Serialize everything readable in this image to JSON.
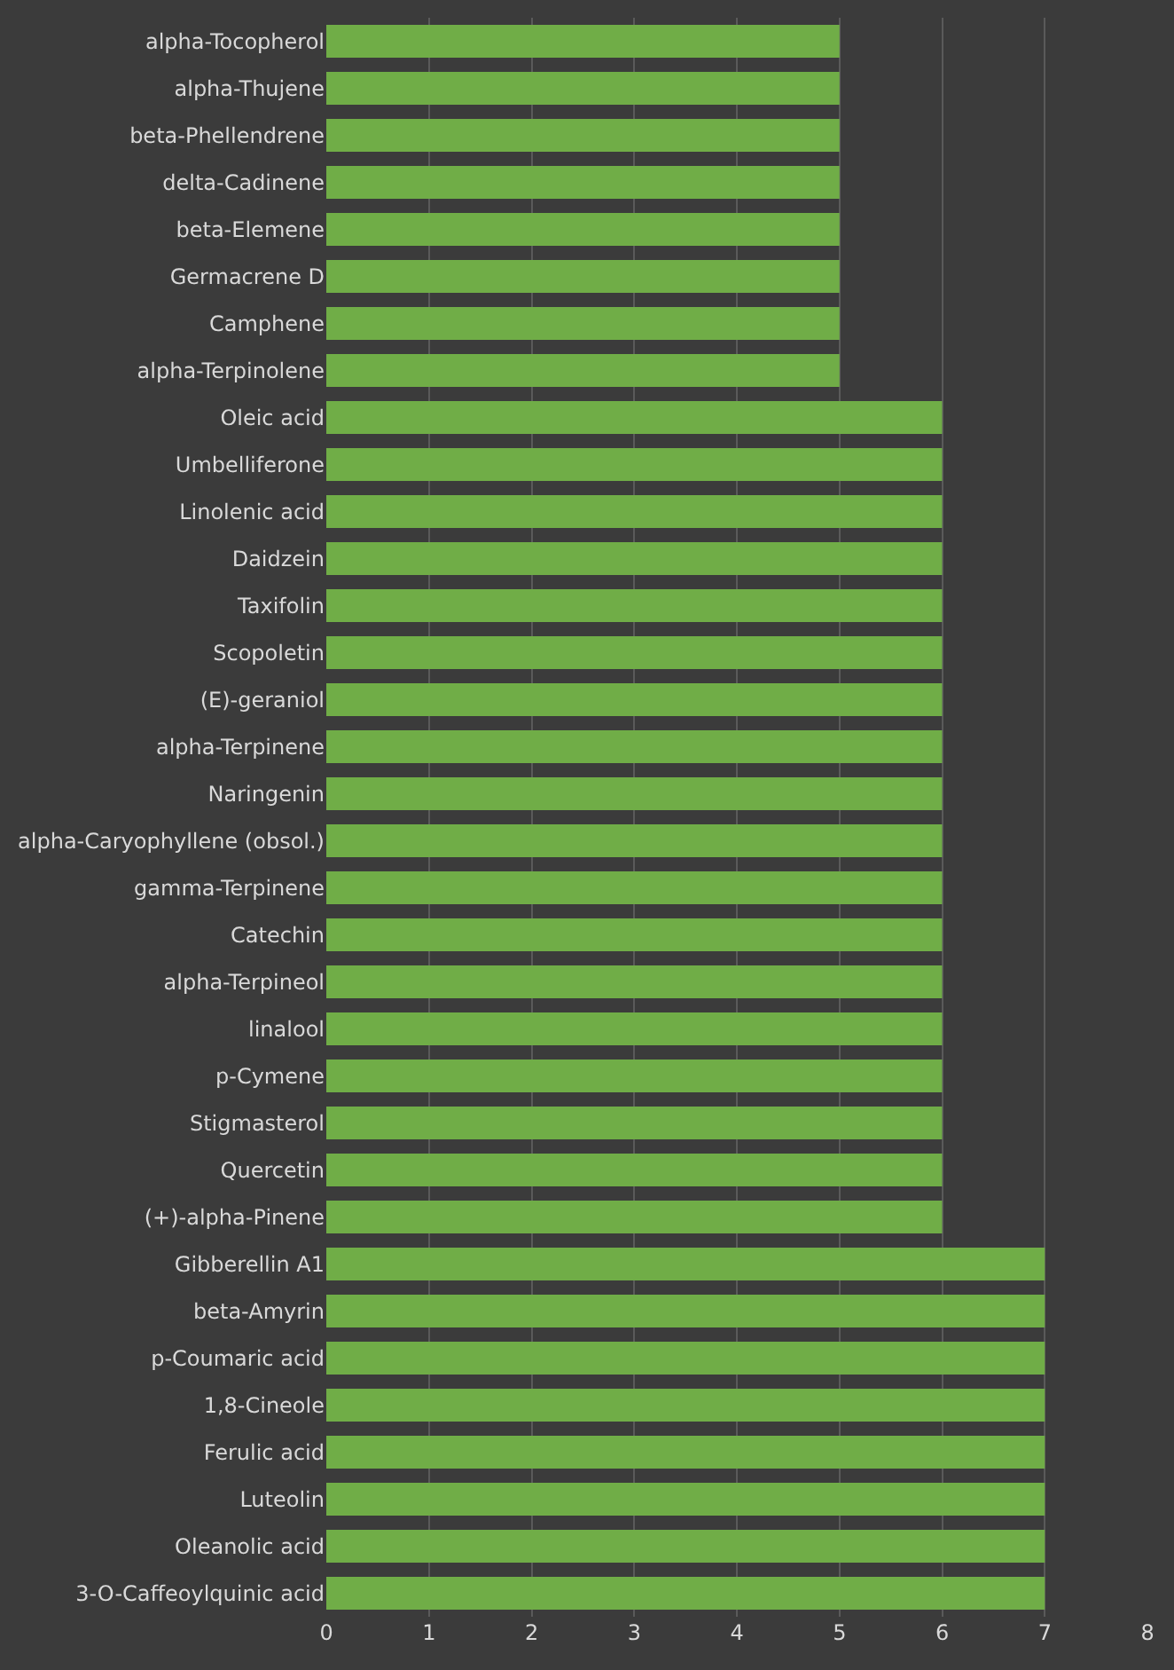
{
  "chart_data": {
    "type": "bar",
    "orientation": "horizontal",
    "categories": [
      "alpha-Tocopherol",
      "alpha-Thujene",
      "beta-Phellendrene",
      "delta-Cadinene",
      "beta-Elemene",
      "Germacrene D",
      "Camphene",
      "alpha-Terpinolene",
      "Oleic acid",
      "Umbelliferone",
      "Linolenic acid",
      "Daidzein",
      "Taxifolin",
      "Scopoletin",
      "(E)-geraniol",
      "alpha-Terpinene",
      "Naringenin",
      "alpha-Caryophyllene (obsol.)",
      "gamma-Terpinene",
      "Catechin",
      "alpha-Terpineol",
      "linalool",
      "p-Cymene",
      "Stigmasterol",
      "Quercetin",
      "(+)-alpha-Pinene",
      "Gibberellin A1",
      "beta-Amyrin",
      "p-Coumaric acid",
      "1,8-Cineole",
      "Ferulic acid",
      "Luteolin",
      "Oleanolic acid",
      "3-O-Caffeoylquinic acid"
    ],
    "values": [
      5,
      5,
      5,
      5,
      5,
      5,
      5,
      5,
      6,
      6,
      6,
      6,
      6,
      6,
      6,
      6,
      6,
      6,
      6,
      6,
      6,
      6,
      6,
      6,
      6,
      6,
      7,
      7,
      7,
      7,
      7,
      7,
      7,
      7
    ],
    "color": "#70ad47",
    "xlim": [
      0,
      8
    ],
    "xticks": [
      0,
      1,
      2,
      3,
      4,
      5,
      6,
      7,
      8
    ],
    "grid": "x"
  }
}
